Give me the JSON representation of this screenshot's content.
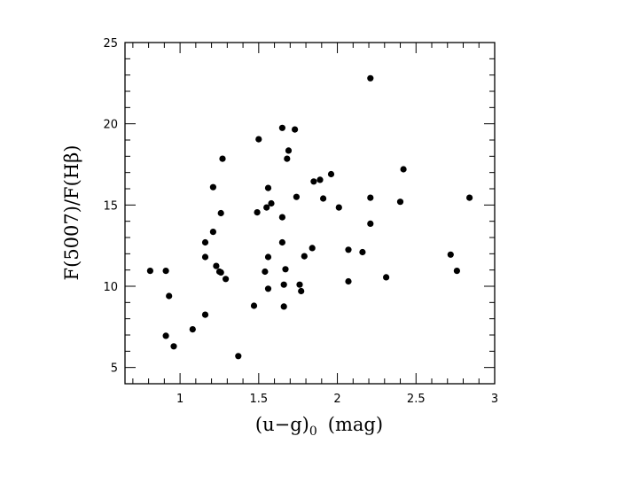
{
  "chart_data": {
    "type": "scatter",
    "title": "",
    "xlabel": "(u−g)",
    "xlabel_subscript": "0",
    "xlabel_unit": "(mag)",
    "ylabel": "F(5007)/F(Hβ)",
    "xlim": [
      0.65,
      3.0
    ],
    "ylim": [
      4.0,
      25.0
    ],
    "xticks": [
      1,
      1.5,
      2,
      2.5,
      3
    ],
    "xtick_labels": [
      "1",
      "1.5",
      "2",
      "2.5",
      "3"
    ],
    "yticks": [
      5,
      10,
      15,
      20,
      25
    ],
    "ytick_labels": [
      "5",
      "10",
      "15",
      "20",
      "25"
    ],
    "grid": false,
    "marker_color": "#000000",
    "points": [
      [
        0.81,
        10.95
      ],
      [
        0.91,
        10.95
      ],
      [
        0.91,
        6.95
      ],
      [
        0.93,
        9.4
      ],
      [
        0.96,
        6.3
      ],
      [
        1.08,
        7.35
      ],
      [
        1.16,
        12.7
      ],
      [
        1.16,
        11.8
      ],
      [
        1.16,
        8.25
      ],
      [
        1.21,
        16.1
      ],
      [
        1.21,
        13.35
      ],
      [
        1.23,
        11.25
      ],
      [
        1.25,
        10.9
      ],
      [
        1.26,
        14.5
      ],
      [
        1.26,
        10.85
      ],
      [
        1.27,
        17.85
      ],
      [
        1.29,
        10.45
      ],
      [
        1.37,
        5.7
      ],
      [
        1.47,
        8.8
      ],
      [
        1.49,
        14.55
      ],
      [
        1.5,
        19.05
      ],
      [
        1.54,
        10.9
      ],
      [
        1.55,
        14.85
      ],
      [
        1.56,
        16.05
      ],
      [
        1.56,
        11.8
      ],
      [
        1.56,
        9.85
      ],
      [
        1.58,
        15.1
      ],
      [
        1.65,
        19.75
      ],
      [
        1.65,
        14.25
      ],
      [
        1.65,
        12.7
      ],
      [
        1.66,
        10.1
      ],
      [
        1.66,
        8.75
      ],
      [
        1.67,
        11.05
      ],
      [
        1.68,
        17.85
      ],
      [
        1.69,
        18.35
      ],
      [
        1.73,
        19.65
      ],
      [
        1.74,
        15.5
      ],
      [
        1.76,
        10.1
      ],
      [
        1.77,
        9.7
      ],
      [
        1.79,
        11.85
      ],
      [
        1.84,
        12.35
      ],
      [
        1.85,
        16.45
      ],
      [
        1.89,
        16.55
      ],
      [
        1.91,
        15.4
      ],
      [
        1.96,
        16.9
      ],
      [
        2.01,
        14.85
      ],
      [
        2.07,
        12.25
      ],
      [
        2.07,
        10.3
      ],
      [
        2.16,
        12.1
      ],
      [
        2.21,
        22.8
      ],
      [
        2.21,
        15.45
      ],
      [
        2.21,
        13.85
      ],
      [
        2.31,
        10.55
      ],
      [
        2.4,
        15.2
      ],
      [
        2.42,
        17.2
      ],
      [
        2.72,
        11.95
      ],
      [
        2.76,
        10.95
      ],
      [
        2.84,
        15.45
      ]
    ]
  }
}
